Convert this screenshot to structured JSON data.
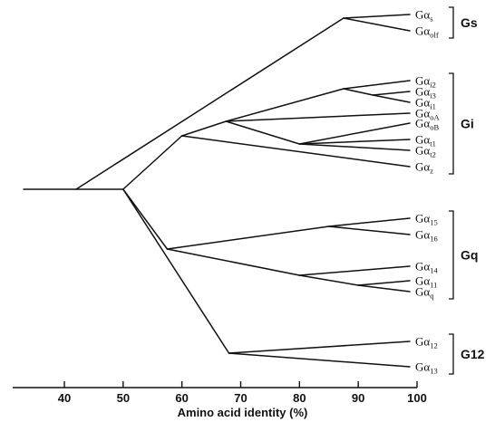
{
  "tree": {
    "nodes": [
      {
        "id": "root",
        "pct": 28
      },
      {
        "id": "n42",
        "pct": 42
      },
      {
        "id": "gs",
        "pct": 87.5
      },
      {
        "id": "n50",
        "pct": 50
      },
      {
        "id": "n60",
        "pct": 60
      },
      {
        "id": "n67",
        "pct": 67.5
      },
      {
        "id": "n87i",
        "pct": 87.5
      },
      {
        "id": "n93",
        "pct": 92.5
      },
      {
        "id": "n80",
        "pct": 80
      },
      {
        "id": "n57",
        "pct": 57.5
      },
      {
        "id": "n85",
        "pct": 85
      },
      {
        "id": "n80q",
        "pct": 80
      },
      {
        "id": "n90",
        "pct": 90
      },
      {
        "id": "n68",
        "pct": 68
      }
    ],
    "leaves": [
      {
        "id": "s",
        "main": "Gα",
        "sub": "s"
      },
      {
        "id": "olf",
        "main": "Gα",
        "sub": "olf"
      },
      {
        "id": "i2",
        "main": "Gα",
        "sub": "i2"
      },
      {
        "id": "i3",
        "main": "Gα",
        "sub": "i3"
      },
      {
        "id": "i1",
        "main": "Gα",
        "sub": "i1"
      },
      {
        "id": "oA",
        "main": "Gα",
        "sub": "oA"
      },
      {
        "id": "oB",
        "main": "Gα",
        "sub": "oB"
      },
      {
        "id": "t1",
        "main": "Gα",
        "sub": "t1"
      },
      {
        "id": "t2",
        "main": "Gα",
        "sub": "t2"
      },
      {
        "id": "z",
        "main": "Gα",
        "sub": "z"
      },
      {
        "id": "15",
        "main": "Gα",
        "sub": "15"
      },
      {
        "id": "16",
        "main": "Gα",
        "sub": "16"
      },
      {
        "id": "14",
        "main": "Gα",
        "sub": "14"
      },
      {
        "id": "11",
        "main": "Gα",
        "sub": "11"
      },
      {
        "id": "q",
        "main": "Gα",
        "sub": "q"
      },
      {
        "id": "12",
        "main": "Gα",
        "sub": "12"
      },
      {
        "id": "13",
        "main": "Gα",
        "sub": "13"
      }
    ],
    "edges": [
      [
        "root",
        "n42"
      ],
      [
        "n42",
        "gs"
      ],
      [
        "gs",
        "s"
      ],
      [
        "gs",
        "olf"
      ],
      [
        "n42",
        "n50"
      ],
      [
        "n50",
        "n60"
      ],
      [
        "n60",
        "n67"
      ],
      [
        "n60",
        "z"
      ],
      [
        "n67",
        "n87i"
      ],
      [
        "n67",
        "oA"
      ],
      [
        "n67",
        "n80"
      ],
      [
        "n87i",
        "i2"
      ],
      [
        "n87i",
        "n93"
      ],
      [
        "n93",
        "i3"
      ],
      [
        "n93",
        "i1"
      ],
      [
        "n80",
        "oB"
      ],
      [
        "n80",
        "t1"
      ],
      [
        "n80",
        "t2"
      ],
      [
        "n50",
        "n57"
      ],
      [
        "n57",
        "n85"
      ],
      [
        "n85",
        "15"
      ],
      [
        "n85",
        "16"
      ],
      [
        "n57",
        "n80q"
      ],
      [
        "n80q",
        "14"
      ],
      [
        "n80q",
        "n90"
      ],
      [
        "n90",
        "11"
      ],
      [
        "n90",
        "q"
      ],
      [
        "n50",
        "n68"
      ],
      [
        "n68",
        "12"
      ],
      [
        "n68",
        "13"
      ]
    ],
    "groups": [
      {
        "label": "Gs",
        "from": "s",
        "to": "olf"
      },
      {
        "label": "Gi",
        "from": "i2",
        "to": "z"
      },
      {
        "label": "Gq",
        "from": "15",
        "to": "q"
      },
      {
        "label": "G12",
        "from": "12",
        "to": "13"
      }
    ]
  },
  "axis": {
    "title": "Amino acid identity (%)",
    "ticks": [
      40,
      50,
      60,
      70,
      80,
      90,
      100
    ]
  }
}
